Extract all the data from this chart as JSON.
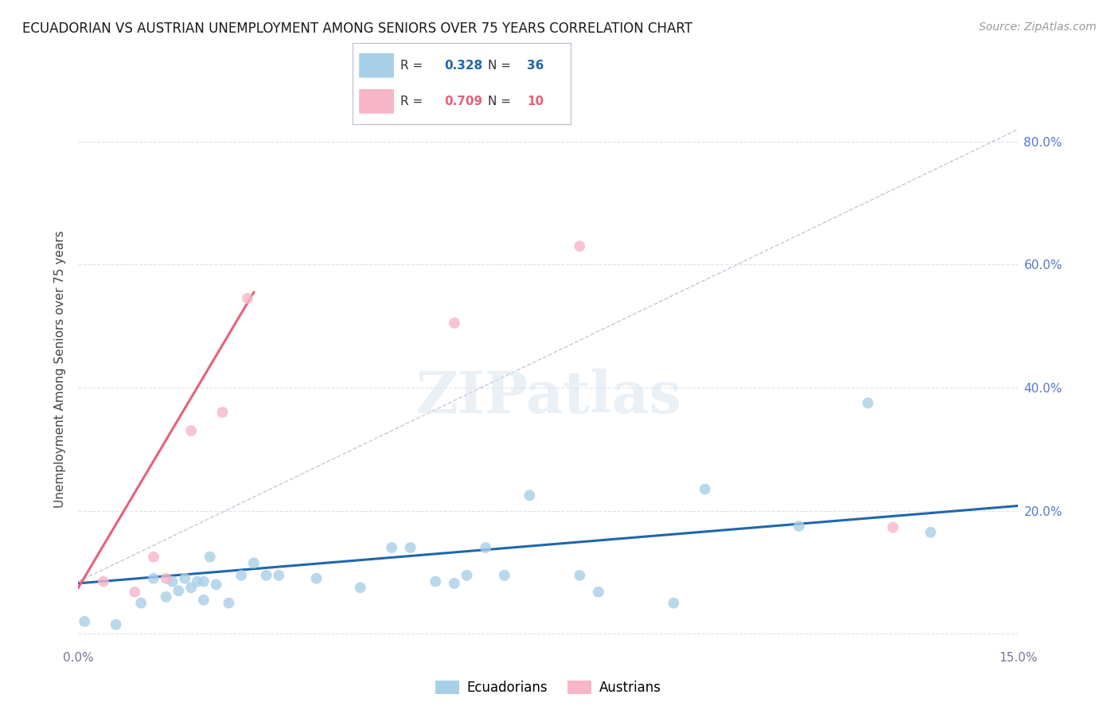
{
  "title": "ECUADORIAN VS AUSTRIAN UNEMPLOYMENT AMONG SENIORS OVER 75 YEARS CORRELATION CHART",
  "source": "Source: ZipAtlas.com",
  "ylabel": "Unemployment Among Seniors over 75 years",
  "legend_blue_R": "0.328",
  "legend_blue_N": "36",
  "legend_pink_R": "0.709",
  "legend_pink_N": "10",
  "legend_label_blue": "Ecuadorians",
  "legend_label_pink": "Austrians",
  "blue_color": "#a8cfe8",
  "pink_color": "#f7b6c8",
  "line_blue_color": "#2166ac",
  "line_pink_color": "#e8607a",
  "line_dashed_color": "#c8c8d8",
  "background_color": "#ffffff",
  "grid_color": "#e0e0ee",
  "xlim": [
    0.0,
    0.15
  ],
  "ylim": [
    -0.02,
    0.88
  ],
  "ecuadorian_x": [
    0.001,
    0.006,
    0.01,
    0.012,
    0.014,
    0.015,
    0.016,
    0.017,
    0.018,
    0.019,
    0.02,
    0.02,
    0.021,
    0.022,
    0.024,
    0.026,
    0.028,
    0.03,
    0.032,
    0.038,
    0.045,
    0.05,
    0.053,
    0.057,
    0.06,
    0.062,
    0.065,
    0.068,
    0.072,
    0.08,
    0.083,
    0.095,
    0.1,
    0.115,
    0.126,
    0.136
  ],
  "ecuadorian_y": [
    0.02,
    0.015,
    0.05,
    0.09,
    0.06,
    0.085,
    0.07,
    0.09,
    0.075,
    0.085,
    0.055,
    0.085,
    0.125,
    0.08,
    0.05,
    0.095,
    0.115,
    0.095,
    0.095,
    0.09,
    0.075,
    0.14,
    0.14,
    0.085,
    0.082,
    0.095,
    0.14,
    0.095,
    0.225,
    0.095,
    0.068,
    0.05,
    0.235,
    0.175,
    0.375,
    0.165
  ],
  "austrian_x": [
    0.004,
    0.009,
    0.012,
    0.014,
    0.018,
    0.023,
    0.027,
    0.06,
    0.08,
    0.13
  ],
  "austrian_y": [
    0.085,
    0.068,
    0.125,
    0.09,
    0.33,
    0.36,
    0.545,
    0.505,
    0.63,
    0.173
  ],
  "blue_line_x": [
    0.0,
    0.15
  ],
  "blue_line_y": [
    0.082,
    0.208
  ],
  "pink_line_x": [
    0.0,
    0.028
  ],
  "pink_line_y": [
    0.075,
    0.555
  ],
  "dashed_line_x": [
    0.0,
    0.15
  ],
  "dashed_line_y": [
    0.085,
    0.82
  ],
  "marker_size": 100,
  "alpha": 0.8
}
